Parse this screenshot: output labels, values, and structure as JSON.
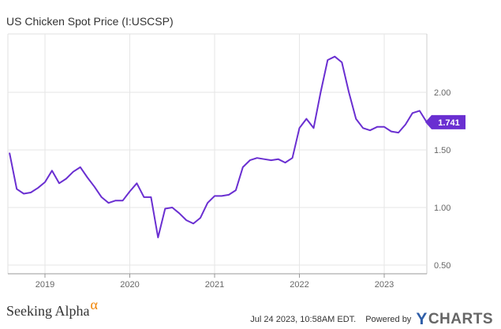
{
  "chart_data": {
    "type": "line",
    "title": "US Chicken Spot Price (I:USCSP)",
    "xlabel": "",
    "ylabel": "",
    "x_ticks": [
      "2019",
      "2020",
      "2021",
      "2022",
      "2023"
    ],
    "y_ticks": [
      "0.50",
      "1.00",
      "1.50",
      "2.00"
    ],
    "ylim": [
      0.45,
      2.5
    ],
    "grid": true,
    "series": [
      {
        "name": "US Chicken Spot Price",
        "color": "#6a2fd1",
        "x": [
          2018.583,
          2018.667,
          2018.75,
          2018.833,
          2018.917,
          2019.0,
          2019.083,
          2019.167,
          2019.25,
          2019.333,
          2019.417,
          2019.5,
          2019.583,
          2019.667,
          2019.75,
          2019.833,
          2019.917,
          2020.0,
          2020.083,
          2020.167,
          2020.25,
          2020.333,
          2020.417,
          2020.5,
          2020.583,
          2020.667,
          2020.75,
          2020.833,
          2020.917,
          2021.0,
          2021.083,
          2021.167,
          2021.25,
          2021.333,
          2021.417,
          2021.5,
          2021.583,
          2021.667,
          2021.75,
          2021.833,
          2021.917,
          2022.0,
          2022.083,
          2022.167,
          2022.25,
          2022.333,
          2022.417,
          2022.5,
          2022.583,
          2022.667,
          2022.75,
          2022.833,
          2022.917,
          2023.0,
          2023.083,
          2023.167,
          2023.25,
          2023.333,
          2023.417,
          2023.5
        ],
        "values": [
          1.47,
          1.16,
          1.12,
          1.13,
          1.17,
          1.22,
          1.32,
          1.21,
          1.25,
          1.31,
          1.35,
          1.26,
          1.18,
          1.09,
          1.04,
          1.06,
          1.06,
          1.14,
          1.21,
          1.09,
          1.09,
          0.74,
          0.99,
          1.0,
          0.95,
          0.89,
          0.86,
          0.91,
          1.04,
          1.1,
          1.1,
          1.11,
          1.15,
          1.35,
          1.41,
          1.43,
          1.42,
          1.41,
          1.42,
          1.39,
          1.43,
          1.69,
          1.77,
          1.69,
          2.0,
          2.28,
          2.31,
          2.26,
          2.0,
          1.77,
          1.69,
          1.67,
          1.7,
          1.7,
          1.66,
          1.65,
          1.72,
          1.82,
          1.84,
          1.741
        ]
      }
    ],
    "last_value_label": "1.741"
  },
  "footer": {
    "brand_left": "Seeking Alpha",
    "brand_left_symbol": "α",
    "timestamp": "Jul 24 2023, 10:58AM EDT.",
    "powered_by": "Powered by",
    "brand_right_y": "Y",
    "brand_right_rest": "CHARTS"
  }
}
